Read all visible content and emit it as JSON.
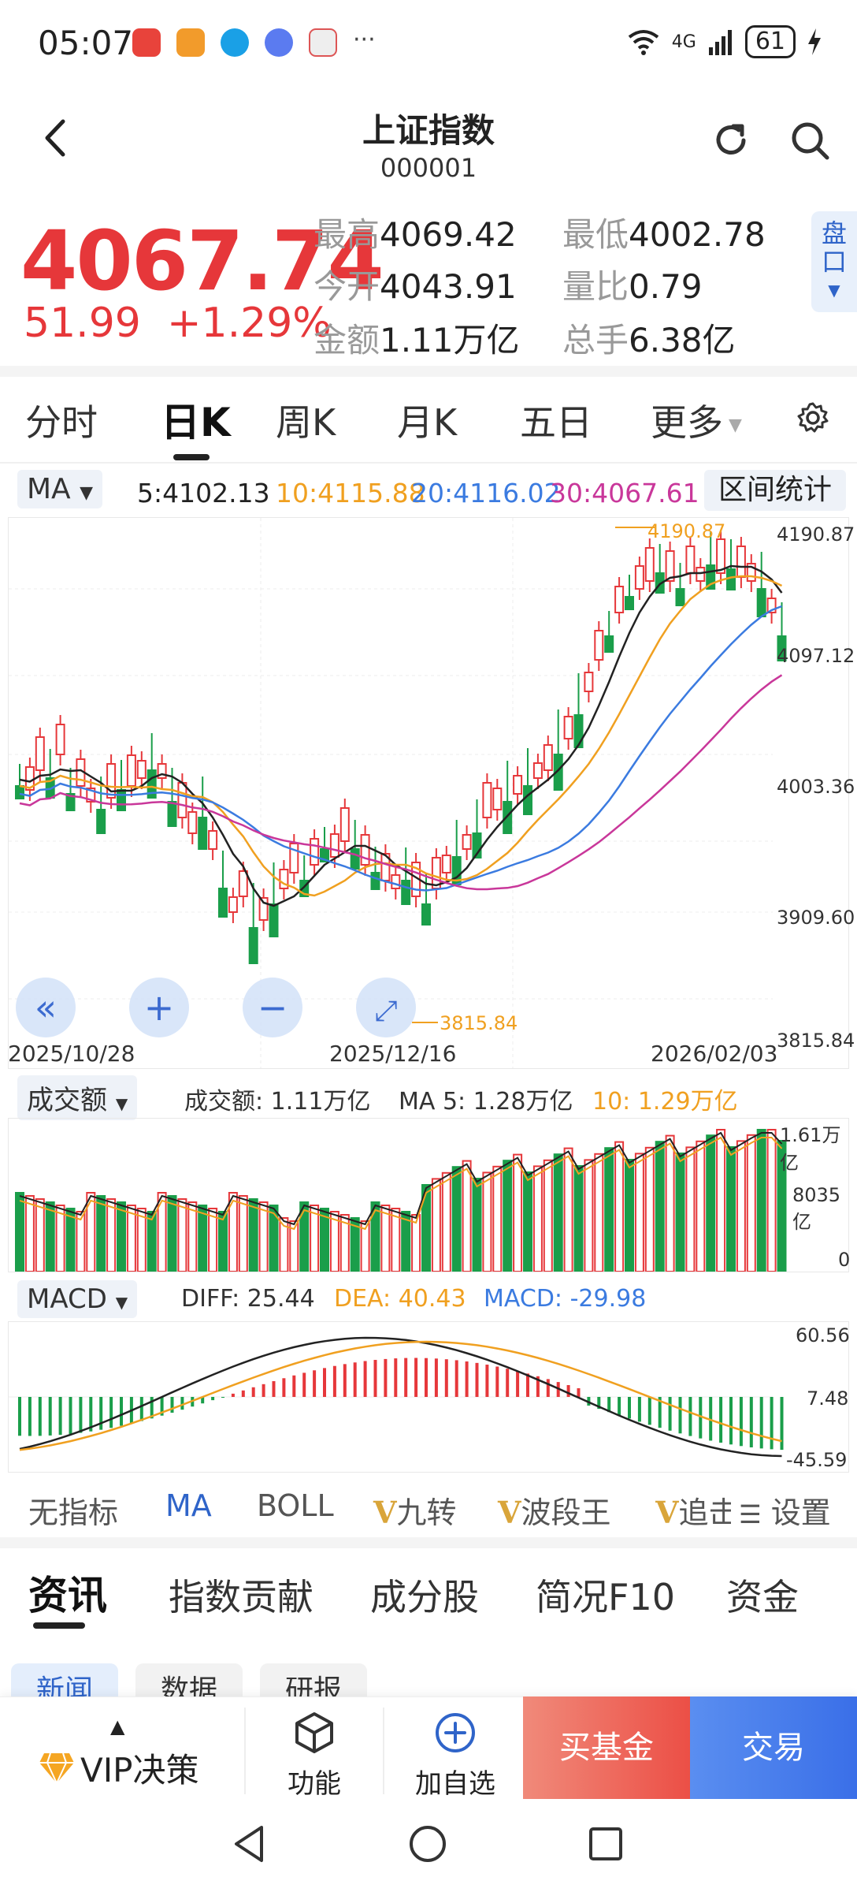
{
  "status_bar": {
    "time": "05:07",
    "signal": "4G",
    "battery": "61"
  },
  "header": {
    "title": "上证指数",
    "code": "000001"
  },
  "quote": {
    "price": "4067.74",
    "change": "51.99",
    "change_pct": "+1.29%",
    "stats": [
      {
        "label": "最高",
        "value": "4069.42"
      },
      {
        "label": "最低",
        "value": "4002.78"
      },
      {
        "label": "今开",
        "value": "4043.91"
      },
      {
        "label": "量比",
        "value": "0.79"
      },
      {
        "label": "金额",
        "value": "1.11万亿"
      },
      {
        "label": "总手",
        "value": "6.38亿"
      }
    ],
    "pankou": "盘口"
  },
  "ktabs": [
    "分时",
    "日K",
    "周K",
    "月K",
    "五日",
    "更多"
  ],
  "ma_row": {
    "selector": "MA",
    "ma5": "5:4102.13",
    "ma10": "10:4115.88",
    "ma20": "20:4116.02",
    "ma30": "30:4067.61",
    "range_stats": "区间统计"
  },
  "kline": {
    "y_labels": [
      "4190.87",
      "4097.12",
      "4003.36",
      "3909.60",
      "3815.84"
    ],
    "dates": [
      "2025/10/28",
      "2025/12/16",
      "2026/02/03"
    ],
    "high_mark": "4190.87",
    "low_mark": "3815.84"
  },
  "volume": {
    "selector": "成交额",
    "current": "成交额: 1.11万亿",
    "ma5": "MA 5: 1.28万亿",
    "ma10": "10: 1.29万亿",
    "y_labels": [
      "1.61万亿",
      "8035亿",
      "0"
    ]
  },
  "macd": {
    "selector": "MACD",
    "diff": "DIFF: 25.44",
    "dea": "DEA: 40.43",
    "macd": "MACD: -29.98",
    "y_labels": [
      "60.56",
      "7.48",
      "-45.59"
    ]
  },
  "indicator_bar": {
    "items": [
      "无指标",
      "MA",
      "BOLL",
      "九转",
      "波段王",
      "追击"
    ],
    "settings": "设置"
  },
  "news_tabs": [
    "资讯",
    "指数贡献",
    "成分股",
    "简况F10",
    "资金"
  ],
  "news_chips": [
    "新闻",
    "数据",
    "研报"
  ],
  "bottom_bar": {
    "vip": "VIP决策",
    "function": "功能",
    "add_watch": "加自选",
    "buy_fund": "买基金",
    "trade": "交易"
  },
  "colors": {
    "up": "#e6373a",
    "down": "#1a9e4a",
    "ma5": "#222222",
    "ma10": "#f0a020",
    "ma20": "#3b7be0",
    "ma30": "#c9379a",
    "accent": "#2f64c9"
  }
}
